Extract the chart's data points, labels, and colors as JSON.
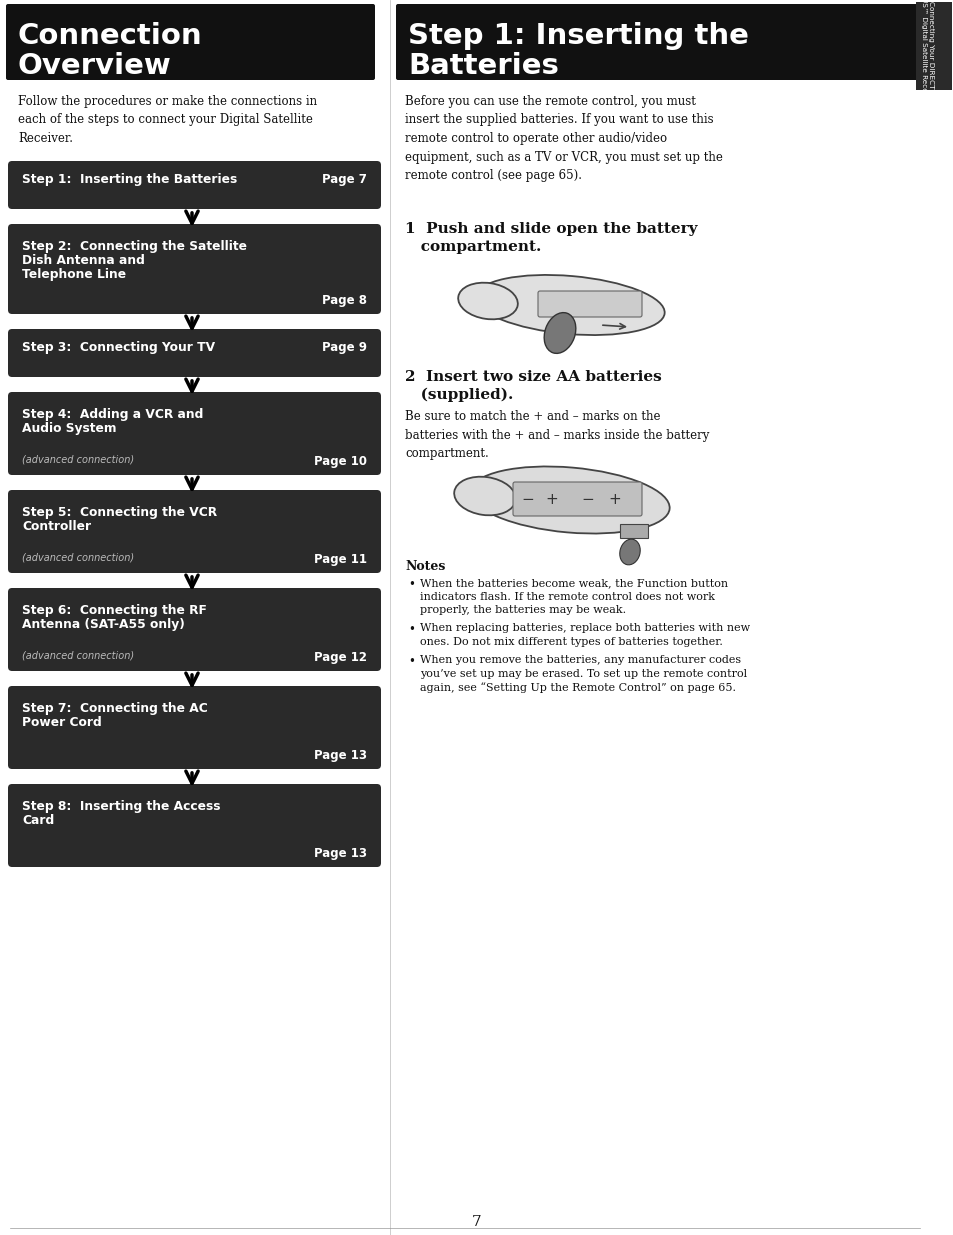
{
  "page_bg": "#ffffff",
  "left_header_bg": "#1a1a1a",
  "right_header_bg": "#1a1a1a",
  "left_header_text": "Connection\nOverview",
  "right_header_text": "Step 1: Inserting the\nBatteries",
  "left_intro": "Follow the procedures or make the connections in\neach of the steps to connect your Digital Satellite\nReceiver.",
  "right_intro": "Before you can use the remote control, you must\ninsert the supplied batteries. If you want to use this\nremote control to operate other audio/video\nequipment, such as a TV or VCR, you must set up the\nremote control (see page 65).",
  "step1_bold_l1": "1  Push and slide open the battery",
  "step1_bold_l2": "   compartment.",
  "step2_bold_l1": "2  Insert two size AA batteries",
  "step2_bold_l2": "   (supplied).",
  "step2_sub": "Be sure to match the + and – marks on the\nbatteries with the + and – marks inside the battery\ncompartment.",
  "notes_title": "Notes",
  "notes": [
    "When the batteries become weak, the Function button\nindicators flash. If the remote control does not work\nproperly, the batteries may be weak.",
    "When replacing batteries, replace both batteries with new\nones. Do not mix different types of batteries together.",
    "When you remove the batteries, any manufacturer codes\nyou’ve set up may be erased. To set up the remote control\nagain, see “Setting Up the Remote Control” on page 65."
  ],
  "sidebar_text": "Connecting Your DIRECTV\nPLUS™ Digital Satellite Receiver",
  "page_number": "7",
  "header_color": "#111111",
  "box_color": "#2a2a2a",
  "text_color_white": "#ffffff",
  "text_color_dark": "#111111",
  "adv_text_color": "#bbbbbb"
}
